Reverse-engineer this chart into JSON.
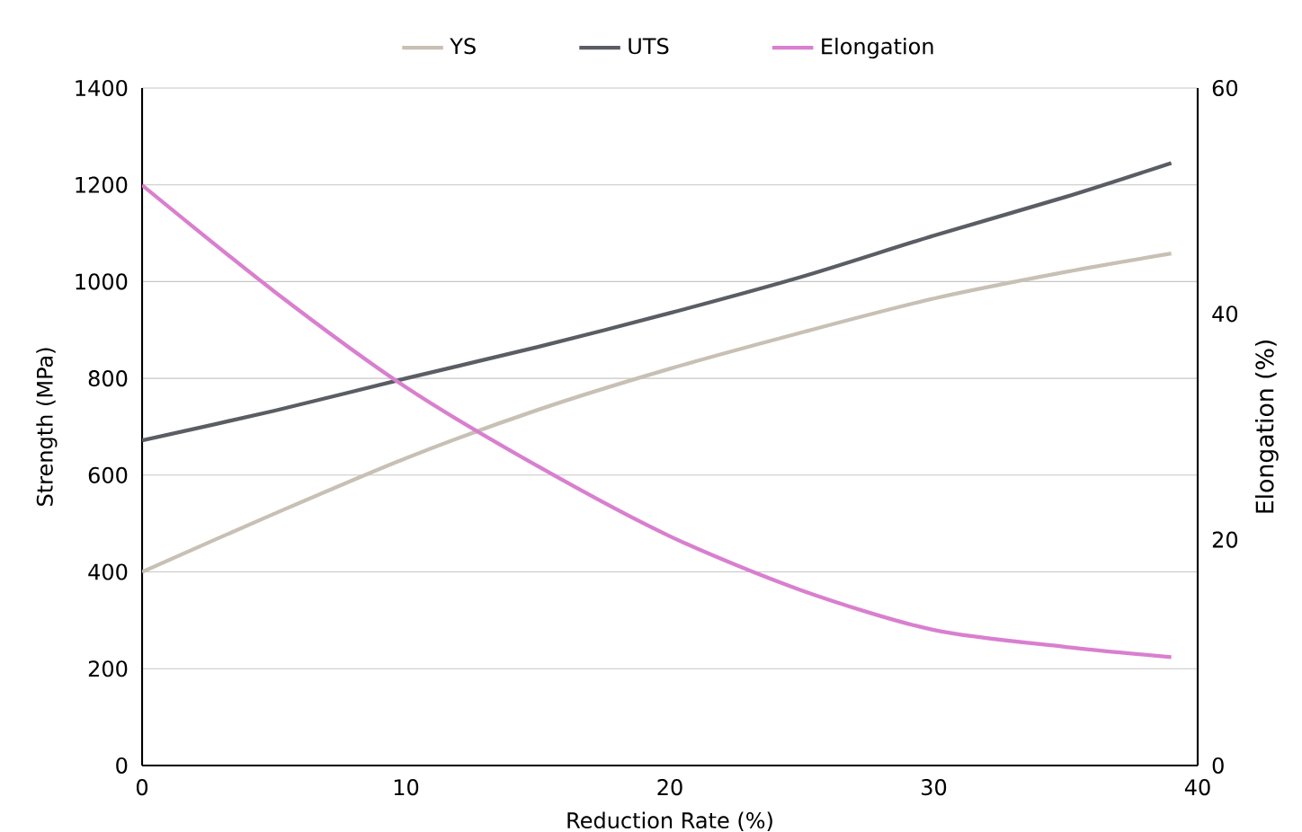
{
  "chart_data": {
    "type": "line",
    "xlabel": "Reduction Rate (%)",
    "ylabel": "Strength (MPa)",
    "y2label": "Elongation (%)",
    "x": [
      0,
      5,
      10,
      15,
      20,
      25,
      30,
      35,
      39
    ],
    "series": [
      {
        "name": "YS",
        "color": "#c8c0b5",
        "values": [
          400,
          520,
          635,
          735,
          820,
          895,
          965,
          1020,
          1058
        ]
      },
      {
        "name": "UTS",
        "color": "#5a5d63",
        "values": [
          672,
          733,
          800,
          865,
          935,
          1010,
          1095,
          1175,
          1245
        ]
      },
      {
        "name": "Elongation",
        "color": "#d97fcf",
        "axis": "y2",
        "values": [
          51.4,
          42.0,
          33.5,
          26.5,
          20.3,
          15.5,
          12.0,
          10.5,
          9.6
        ]
      }
    ],
    "xlim": [
      0,
      40
    ],
    "xticks": [
      0,
      10,
      20,
      30,
      40
    ],
    "ylim": [
      0,
      1400
    ],
    "yticks": [
      0,
      200,
      400,
      600,
      800,
      1000,
      1200,
      1400
    ],
    "y2lim": [
      0,
      60
    ],
    "y2ticks": [
      0,
      20,
      40,
      60
    ],
    "grid": "y",
    "legend": "top"
  }
}
